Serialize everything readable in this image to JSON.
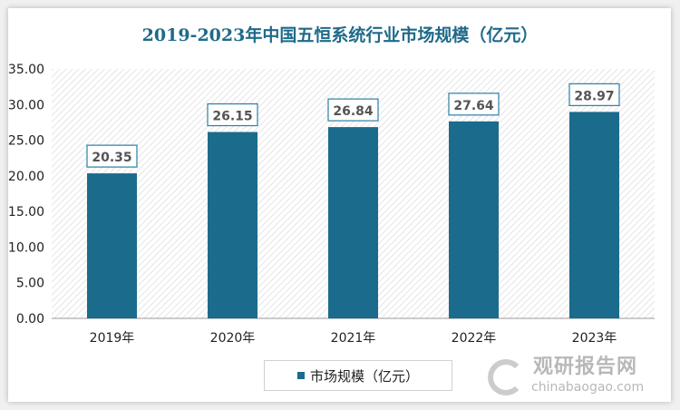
{
  "chart_data": {
    "type": "bar",
    "title": "2019-2023年中国五恒系统行业市场规模（亿元）",
    "categories": [
      "2019年",
      "2020年",
      "2021年",
      "2022年",
      "2023年"
    ],
    "series": [
      {
        "name": "市场规模（亿元）",
        "values": [
          20.35,
          26.15,
          26.84,
          27.64,
          28.97
        ],
        "color": "#1b6b8c"
      }
    ],
    "data_labels": [
      "20.35",
      "26.15",
      "26.84",
      "27.64",
      "28.97"
    ],
    "ylim": [
      0,
      35
    ],
    "yticks": [
      "0.00",
      "5.00",
      "10.00",
      "15.00",
      "20.00",
      "25.00",
      "30.00",
      "35.00"
    ],
    "xlabel": "",
    "ylabel": "",
    "legend": "bottom"
  },
  "watermark": {
    "cn": "观研报告网",
    "en": "chinabaogao.com"
  }
}
